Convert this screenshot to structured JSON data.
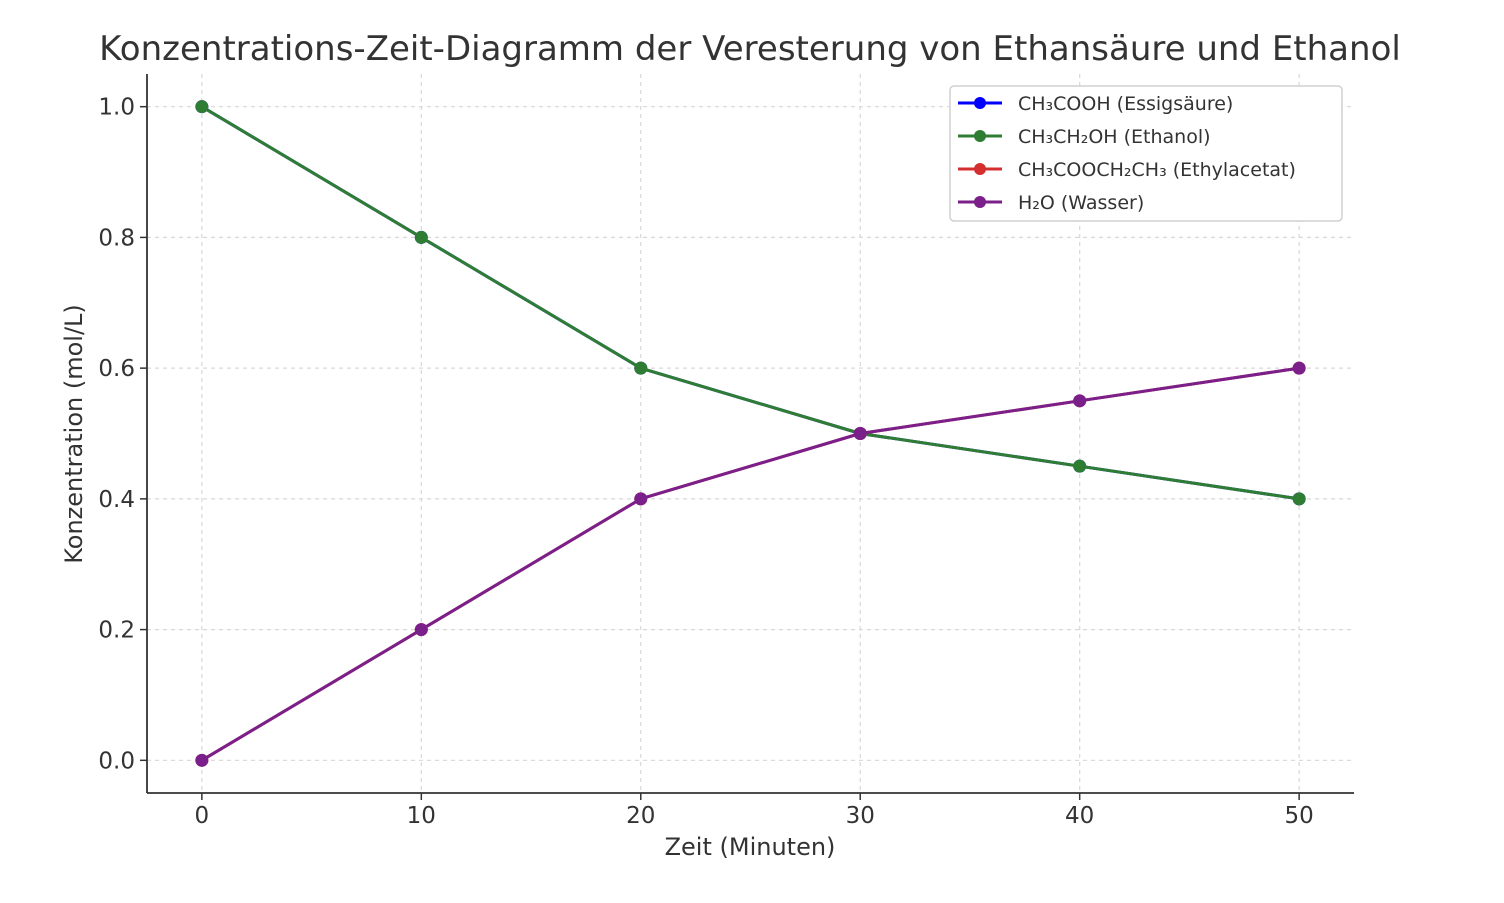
{
  "chart_data": {
    "type": "line",
    "title": "Konzentrations-Zeit-Diagramm der Veresterung von Ethansäure und Ethanol",
    "xlabel": "Zeit (Minuten)",
    "ylabel": "Konzentration (mol/L)",
    "x": [
      0,
      10,
      20,
      30,
      40,
      50
    ],
    "xlim": [
      -2.5,
      52.5
    ],
    "ylim": [
      -0.05,
      1.05
    ],
    "x_ticks": [
      "0",
      "10",
      "20",
      "30",
      "40",
      "50"
    ],
    "y_ticks": [
      "0.0",
      "0.2",
      "0.4",
      "0.6",
      "0.8",
      "1.0"
    ],
    "grid": true,
    "legend_position": "top-right",
    "series": [
      {
        "name": "CH₃COOH (Essigsäure)",
        "values": [
          1.0,
          0.8,
          0.6,
          0.5,
          0.45,
          0.4
        ],
        "color": "#0000ff"
      },
      {
        "name": "CH₃CH₂OH (Ethanol)",
        "values": [
          1.0,
          0.8,
          0.6,
          0.5,
          0.45,
          0.4
        ],
        "color": "#2e7d32"
      },
      {
        "name": "CH₃COOCH₂CH₃ (Ethylacetat)",
        "values": [
          0.0,
          0.2,
          0.4,
          0.5,
          0.55,
          0.6
        ],
        "color": "#d32f2f"
      },
      {
        "name": "H₂O (Wasser)",
        "values": [
          0.0,
          0.2,
          0.4,
          0.5,
          0.55,
          0.6
        ],
        "color": "#7b1f8a"
      }
    ]
  }
}
